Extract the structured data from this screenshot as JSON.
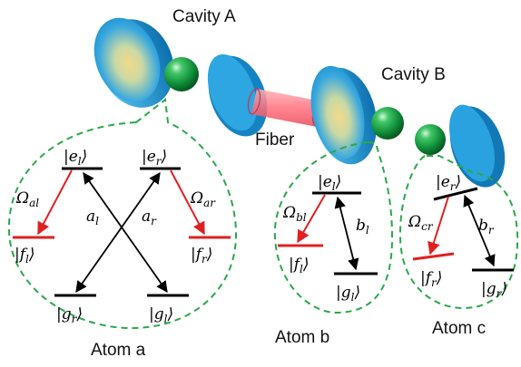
{
  "labels": {
    "cavity_a": "Cavity A",
    "cavity_b": "Cavity B",
    "fiber": "Fiber",
    "atom_a": "Atom a",
    "atom_b": "Atom b",
    "atom_c": "Atom c"
  },
  "atom_a_levels": {
    "el": "|e_l⟩",
    "er": "|e_r⟩",
    "fl": "|f_l⟩",
    "fr": "|f_r⟩",
    "gr": "|g_r⟩",
    "gl": "|g_l⟩",
    "omega_al": "Ω_al",
    "omega_ar": "Ω_ar",
    "a_l": "a_l",
    "a_r": "a_r"
  },
  "atom_b_levels": {
    "el": "|e_l⟩",
    "fl": "|f_l⟩",
    "gl": "|g_l⟩",
    "omega_bl": "Ω_bl",
    "b_l": "b_l"
  },
  "atom_c_levels": {
    "er": "|e_r⟩",
    "fr": "|f_r⟩",
    "gr": "|g_r⟩",
    "omega_cr": "Ω_cr",
    "b_r": "b_r"
  },
  "colors": {
    "cavity": "#1e9fd8",
    "cavity_dark": "#0b6ea8",
    "cavity_glow": "#f2d27a",
    "atom": "#1aa64a",
    "fiber": "#ff7a85",
    "dashed": "#2aa84a",
    "laser": "#e02020"
  }
}
